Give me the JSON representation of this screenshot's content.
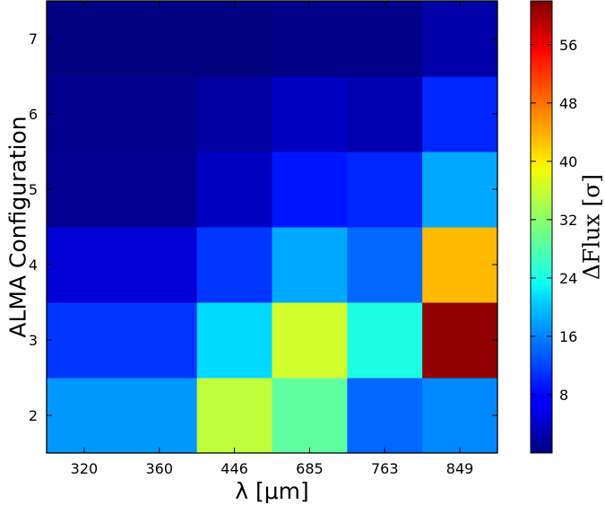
{
  "chart_data": {
    "type": "heatmap",
    "title": "",
    "xlabel": "λ [μm]",
    "ylabel": "ALMA Configuration",
    "colorbar_label": "ΔFlux  [σ]",
    "colormap": "jet",
    "x_categories": [
      "320",
      "360",
      "446",
      "685",
      "763",
      "849"
    ],
    "y_categories": [
      "2",
      "3",
      "4",
      "5",
      "6",
      "7"
    ],
    "values": [
      [
        17,
        17,
        35,
        29,
        14,
        16
      ],
      [
        11,
        11,
        21,
        36,
        25,
        61
      ],
      [
        5,
        5,
        11,
        18,
        14,
        43
      ],
      [
        1,
        1,
        4,
        9,
        10,
        18
      ],
      [
        0.8,
        0.8,
        2,
        4,
        3,
        10
      ],
      [
        0,
        0,
        0,
        0.5,
        0.5,
        2.5
      ]
    ],
    "colorbar_range": [
      0,
      62
    ],
    "colorbar_ticks": [
      "8",
      "16",
      "24",
      "32",
      "40",
      "48",
      "56"
    ]
  }
}
